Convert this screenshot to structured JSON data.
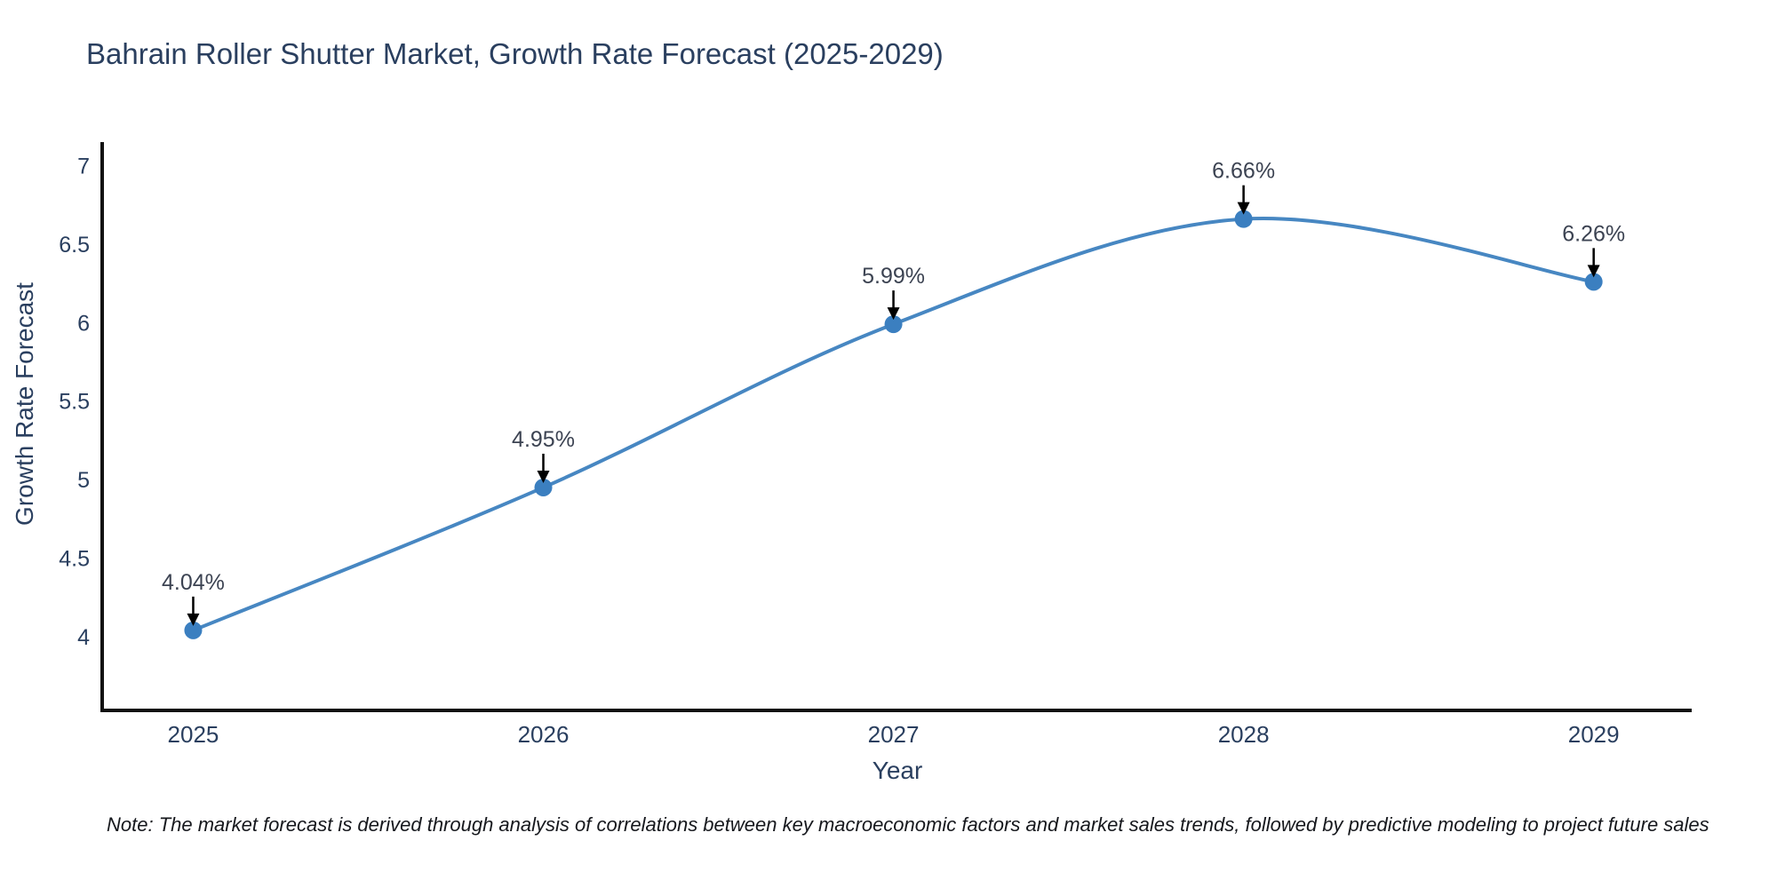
{
  "page": {
    "note": "Note: The market forecast is derived through analysis of correlations between key macroeconomic factors and market sales trends, followed by predictive modeling to project future sales"
  },
  "chart_data": {
    "type": "line",
    "title": "Bahrain Roller Shutter Market, Growth Rate Forecast (2025-2029)",
    "xlabel": "Year",
    "ylabel": "Growth Rate Forecast",
    "x": [
      2025,
      2026,
      2027,
      2028,
      2029
    ],
    "values": [
      4.04,
      4.95,
      5.99,
      6.66,
      6.26
    ],
    "point_labels": [
      "4.04%",
      "4.95%",
      "5.99%",
      "6.66%",
      "6.26%"
    ],
    "yticks": [
      4,
      4.5,
      5,
      5.5,
      6,
      6.5,
      7
    ],
    "ylim": [
      3.53,
      7.15
    ],
    "xlim": [
      2024.74,
      2029.28
    ],
    "grid": false,
    "legend": "none",
    "line_style": "spline",
    "marker": "circle",
    "annotation_arrows": true,
    "colors": {
      "line": "#4787c2",
      "marker": "#3b7fc0",
      "axis": "#111111",
      "tick_text": "#2a3f5f",
      "annotation_text": "#3c4352",
      "arrow": "#000000",
      "title_text": "#2a3f5f"
    }
  }
}
